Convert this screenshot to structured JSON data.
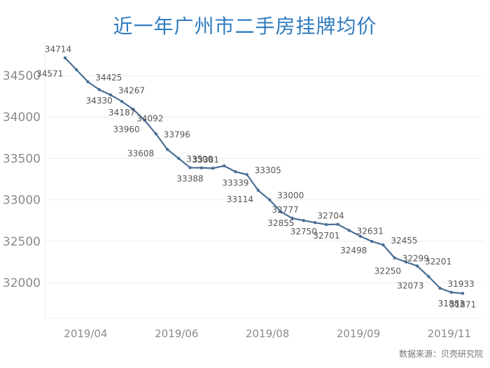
{
  "title": "近一年广州市二手房挂牌均价",
  "source": "数据来源：贝壳研究院",
  "colors": {
    "line": "#4a6f96",
    "title": "#2f7cbf",
    "grid": "#eeeeee",
    "axis_text": "#8a8a8a",
    "label_text": "#555555"
  },
  "chart_data": {
    "type": "line",
    "title": "近一年广州市二手房挂牌均价",
    "xlabel": "",
    "ylabel": "",
    "ylim": [
      31580,
      34940
    ],
    "grid": true,
    "legend": "none",
    "y_ticks": [
      32000,
      32500,
      33000,
      33500,
      34000,
      34500
    ],
    "x_ticks": [
      {
        "label": "2019/04",
        "index": 2
      },
      {
        "label": "2019/06",
        "index": 10
      },
      {
        "label": "2019/08",
        "index": 18
      },
      {
        "label": "2019/09",
        "index": 26
      },
      {
        "label": "2019/11",
        "index": 34
      }
    ],
    "series": [
      {
        "name": "挂牌均价",
        "values": [
          34714,
          34571,
          34425,
          34330,
          34267,
          34187,
          34092,
          33960,
          33796,
          33608,
          33500,
          33388,
          33386,
          33381,
          33410,
          33339,
          33305,
          33114,
          33000,
          32855,
          32777,
          32750,
          32725,
          32701,
          32704,
          32631,
          32560,
          32498,
          32455,
          32299,
          32250,
          32201,
          32073,
          31933,
          31883,
          31871
        ],
        "labels": [
          {
            "i": 0,
            "text": "34714",
            "pos": "above"
          },
          {
            "i": 1,
            "text": "34571",
            "pos": "left"
          },
          {
            "i": 2,
            "text": "34425",
            "pos": "above-right"
          },
          {
            "i": 3,
            "text": "34330",
            "pos": "below"
          },
          {
            "i": 4,
            "text": "34267",
            "pos": "above-right"
          },
          {
            "i": 5,
            "text": "34187",
            "pos": "below"
          },
          {
            "i": 6,
            "text": "34092",
            "pos": "below-right"
          },
          {
            "i": 7,
            "text": "33960",
            "pos": "below-left"
          },
          {
            "i": 8,
            "text": "33796",
            "pos": "right"
          },
          {
            "i": 9,
            "text": "33608",
            "pos": "left"
          },
          {
            "i": 10,
            "text": "33500",
            "pos": "right"
          },
          {
            "i": 11,
            "text": "33388",
            "pos": "below"
          },
          {
            "i": 13,
            "text": "33381",
            "pos": "above"
          },
          {
            "i": 15,
            "text": "33339",
            "pos": "below"
          },
          {
            "i": 16,
            "text": "33305",
            "pos": "above-right"
          },
          {
            "i": 17,
            "text": "33114",
            "pos": "below-left"
          },
          {
            "i": 18,
            "text": "33000",
            "pos": "above-right"
          },
          {
            "i": 19,
            "text": "32855",
            "pos": "below"
          },
          {
            "i": 20,
            "text": "32777",
            "pos": "above"
          },
          {
            "i": 21,
            "text": "32750",
            "pos": "below"
          },
          {
            "i": 23,
            "text": "32701",
            "pos": "below"
          },
          {
            "i": 24,
            "text": "32704",
            "pos": "above"
          },
          {
            "i": 25,
            "text": "32631",
            "pos": "right"
          },
          {
            "i": 27,
            "text": "32498",
            "pos": "below-left"
          },
          {
            "i": 28,
            "text": "32455",
            "pos": "above-right"
          },
          {
            "i": 29,
            "text": "32299",
            "pos": "right"
          },
          {
            "i": 30,
            "text": "32250",
            "pos": "below-left"
          },
          {
            "i": 31,
            "text": "32201",
            "pos": "above-right"
          },
          {
            "i": 32,
            "text": "32073",
            "pos": "below-left"
          },
          {
            "i": 33,
            "text": "31933",
            "pos": "above-right"
          },
          {
            "i": 34,
            "text": "31883",
            "pos": "below"
          },
          {
            "i": 35,
            "text": "31871",
            "pos": "below"
          }
        ]
      }
    ]
  }
}
